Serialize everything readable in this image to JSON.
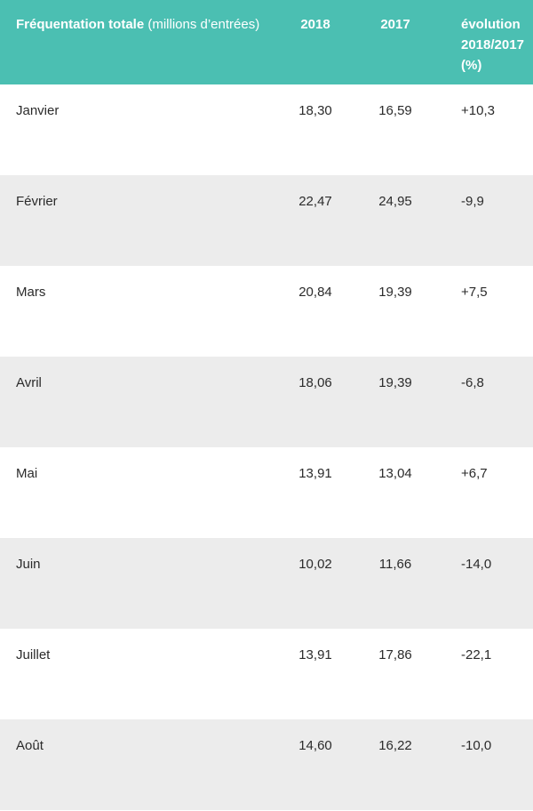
{
  "colors": {
    "header_bg": "#4bbfb2",
    "header_text": "#ffffff",
    "row_alt_bg": "#ececec",
    "row_bg": "#ffffff",
    "cell_text": "#2b2b2b"
  },
  "table": {
    "header": {
      "title_bold": "Fréquentation totale",
      "title_unit": " (millions d’entrées)",
      "col_2018": "2018",
      "col_2017": "2017",
      "col_evolution": "évolution 2018/2017 (%)"
    },
    "rows": [
      {
        "month": "Janvier",
        "v2018": "18,30",
        "v2017": "16,59",
        "evolution": "+10,3"
      },
      {
        "month": "Février",
        "v2018": "22,47",
        "v2017": "24,95",
        "evolution": "-9,9"
      },
      {
        "month": "Mars",
        "v2018": "20,84",
        "v2017": "19,39",
        "evolution": "+7,5"
      },
      {
        "month": "Avril",
        "v2018": "18,06",
        "v2017": "19,39",
        "evolution": "-6,8"
      },
      {
        "month": "Mai",
        "v2018": "13,91",
        "v2017": "13,04",
        "evolution": "+6,7"
      },
      {
        "month": "Juin",
        "v2018": "10,02",
        "v2017": "11,66",
        "evolution": "-14,0"
      },
      {
        "month": "Juillet",
        "v2018": "13,91",
        "v2017": "17,86",
        "evolution": "-22,1"
      },
      {
        "month": "Août",
        "v2018": "14,60",
        "v2017": "16,22",
        "evolution": "-10,0"
      }
    ]
  },
  "chart_data": {
    "type": "table",
    "title": "Fréquentation totale (millions d’entrées)",
    "columns": [
      "Fréquentation totale (millions d’entrées)",
      "2018",
      "2017",
      "évolution 2018/2017 (%)"
    ],
    "categories": [
      "Janvier",
      "Février",
      "Mars",
      "Avril",
      "Mai",
      "Juin",
      "Juillet",
      "Août"
    ],
    "series": [
      {
        "name": "2018",
        "values": [
          18.3,
          22.47,
          20.84,
          18.06,
          13.91,
          10.02,
          13.91,
          14.6
        ]
      },
      {
        "name": "2017",
        "values": [
          16.59,
          24.95,
          19.39,
          19.39,
          13.04,
          11.66,
          17.86,
          16.22
        ]
      },
      {
        "name": "évolution 2018/2017 (%)",
        "values": [
          10.3,
          -9.9,
          7.5,
          -6.8,
          6.7,
          -14.0,
          -22.1,
          -10.0
        ]
      }
    ],
    "layout_hints": {
      "header_background": "#4bbfb2",
      "zebra_striping": true,
      "visible_rows_cropped_after": "Août"
    }
  }
}
